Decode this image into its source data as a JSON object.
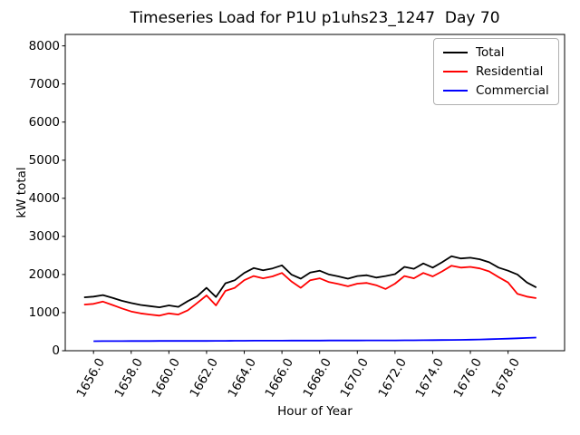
{
  "chart_data": {
    "type": "line",
    "title": "Timeseries Load for P1U p1uhs23_1247  Day 70",
    "xlabel": "Hour of Year",
    "ylabel": "kW total",
    "xlim": [
      1654.5,
      1681.0
    ],
    "ylim": [
      0,
      8300
    ],
    "grid": false,
    "legend_position": "upper right",
    "xtick_values": [
      1656,
      1658,
      1660,
      1662,
      1664,
      1666,
      1668,
      1670,
      1672,
      1674,
      1676,
      1678
    ],
    "xtick_labels": [
      "1656.0",
      "1658.0",
      "1660.0",
      "1662.0",
      "1664.0",
      "1666.0",
      "1668.0",
      "1670.0",
      "1672.0",
      "1674.0",
      "1676.0",
      "1678.0"
    ],
    "ytick_values": [
      0,
      1000,
      2000,
      3000,
      4000,
      5000,
      6000,
      7000,
      8000
    ],
    "ytick_labels": [
      "0",
      "1000",
      "2000",
      "3000",
      "4000",
      "5000",
      "6000",
      "7000",
      "8000"
    ],
    "series": [
      {
        "name": "Total",
        "color": "#000000",
        "x_start": 1655.5,
        "x_step": 0.5,
        "values": [
          1400,
          1420,
          1460,
          1390,
          1310,
          1250,
          1200,
          1170,
          1140,
          1190,
          1150,
          1300,
          1430,
          1650,
          1410,
          1770,
          1850,
          2040,
          2170,
          2110,
          2160,
          2240,
          2000,
          1890,
          2050,
          2100,
          2000,
          1950,
          1890,
          1960,
          1980,
          1920,
          1960,
          2010,
          2200,
          2150,
          2290,
          2180,
          2320,
          2480,
          2420,
          2440,
          2400,
          2320,
          2180,
          2100,
          2000,
          1790,
          1660
        ]
      },
      {
        "name": "Residential",
        "color": "#ff0000",
        "x_start": 1655.5,
        "x_step": 0.5,
        "values": [
          1210,
          1230,
          1290,
          1200,
          1110,
          1030,
          980,
          950,
          920,
          980,
          950,
          1060,
          1250,
          1450,
          1190,
          1570,
          1650,
          1850,
          1960,
          1900,
          1950,
          2040,
          1820,
          1650,
          1850,
          1900,
          1800,
          1750,
          1690,
          1760,
          1780,
          1720,
          1620,
          1760,
          1960,
          1900,
          2040,
          1950,
          2080,
          2230,
          2180,
          2200,
          2160,
          2080,
          1930,
          1790,
          1490,
          1420,
          1380
        ]
      },
      {
        "name": "Commercial",
        "color": "#0000ff",
        "x_start": 1656.0,
        "x_step": 0.5,
        "values": [
          250,
          251,
          252,
          253,
          254,
          255,
          255,
          256,
          256,
          257,
          257,
          258,
          258,
          259,
          260,
          261,
          262,
          263,
          264,
          265,
          265,
          266,
          266,
          267,
          267,
          268,
          268,
          269,
          269,
          270,
          270,
          271,
          272,
          273,
          274,
          276,
          278,
          280,
          283,
          286,
          290,
          295,
          301,
          308,
          316,
          325,
          335,
          345
        ]
      }
    ]
  }
}
